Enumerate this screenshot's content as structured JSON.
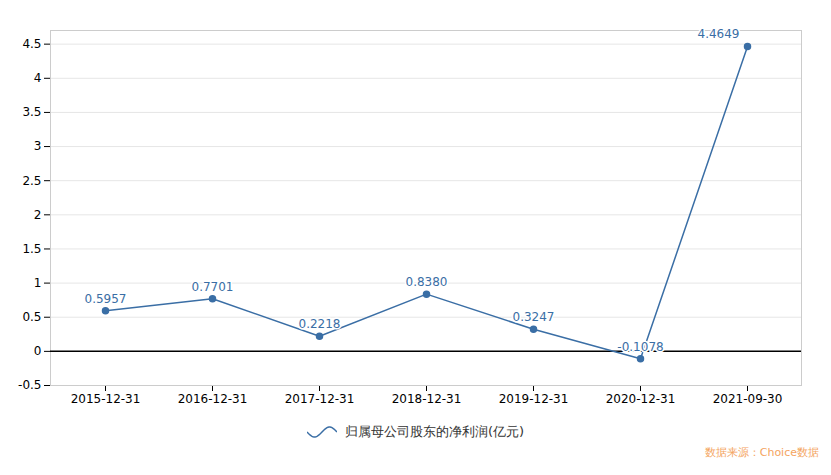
{
  "chart_data": {
    "type": "line",
    "categories": [
      "2015-12-31",
      "2016-12-31",
      "2017-12-31",
      "2018-12-31",
      "2019-12-31",
      "2020-12-31",
      "2021-09-30"
    ],
    "series": [
      {
        "name": "归属母公司股东的净利润(亿元)",
        "color": "#3A6EA5",
        "marker": "o",
        "values": [
          0.5957,
          0.7701,
          0.2218,
          0.838,
          0.3247,
          -0.1078,
          4.4649
        ],
        "value_labels": [
          "0.5957",
          "0.7701",
          "0.2218",
          "0.8380",
          "0.3247",
          "-0.1078",
          "4.4649"
        ]
      }
    ],
    "ylim": [
      -0.5,
      4.7
    ],
    "yticks": [
      -0.5,
      0,
      0.5,
      1,
      1.5,
      2,
      2.5,
      3,
      3.5,
      4,
      4.5
    ],
    "grid": true,
    "data_labels": true,
    "legend": "lower center",
    "caption": "数据来源：Choice数据"
  }
}
